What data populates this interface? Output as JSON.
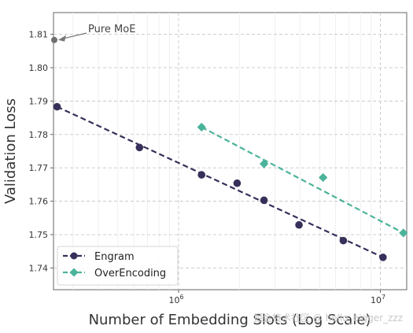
{
  "chart_data": {
    "type": "scatter",
    "title": "",
    "xlabel": "Number of Embedding Slots (Log Scale)",
    "ylabel": "Validation Loss",
    "xscale": "log",
    "xlim": [
      240000,
      13500000
    ],
    "ylim": [
      1.7335,
      1.8165
    ],
    "grid": true,
    "legend_position": "lower-left",
    "x_ticks": [
      {
        "value": 1000000,
        "base": "10",
        "exp": "6"
      },
      {
        "value": 10000000,
        "base": "10",
        "exp": "7"
      }
    ],
    "y_ticks": [
      1.74,
      1.75,
      1.76,
      1.77,
      1.78,
      1.79,
      1.8,
      1.81
    ],
    "series": [
      {
        "name": "Engram",
        "color": "#36305a",
        "marker": "circle",
        "points": [
          {
            "x": 250000,
            "y": 1.7883
          },
          {
            "x": 640000,
            "y": 1.7761
          },
          {
            "x": 1300000,
            "y": 1.7679
          },
          {
            "x": 1950000,
            "y": 1.7654
          },
          {
            "x": 2650000,
            "y": 1.7603
          },
          {
            "x": 3950000,
            "y": 1.7529
          },
          {
            "x": 6550000,
            "y": 1.7482
          },
          {
            "x": 10300000,
            "y": 1.7432
          }
        ],
        "fit": [
          {
            "x": 250000,
            "y": 1.7883
          },
          {
            "x": 10300000,
            "y": 1.7432
          }
        ]
      },
      {
        "name": "OverEncoding",
        "color": "#4bb39a",
        "marker": "diamond",
        "points": [
          {
            "x": 1300000,
            "y": 1.7822
          },
          {
            "x": 2650000,
            "y": 1.7712
          },
          {
            "x": 5200000,
            "y": 1.7671
          },
          {
            "x": 13000000,
            "y": 1.7505
          }
        ],
        "fit": [
          {
            "x": 1300000,
            "y": 1.7822
          },
          {
            "x": 13000000,
            "y": 1.7505
          }
        ]
      }
    ],
    "baseline": {
      "label": "Pure MoE",
      "x": 240000,
      "y": 1.8083,
      "color": "#707070"
    }
  },
  "watermark": "掘金技术社区 @ hello_bigger_zzz"
}
